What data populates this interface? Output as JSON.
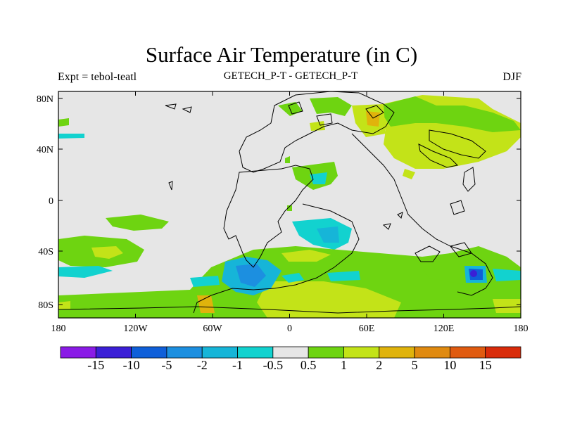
{
  "header": {
    "title": "Surface Air Temperature (in C)",
    "left_label": "Expt = tebol-teatl",
    "center_label": "GETECH_P-T - GETECH_P-T",
    "right_label": "DJF"
  },
  "map": {
    "lon_range": [
      -180,
      180
    ],
    "lat_range": [
      -90,
      90
    ],
    "x_ticks": [
      "180",
      "120W",
      "60W",
      "0",
      "60E",
      "120E",
      "180"
    ],
    "y_ticks": [
      "80N",
      "40N",
      "0",
      "40S",
      "80S"
    ],
    "background_color": "#e6e6e6"
  },
  "colorbar": {
    "labels": [
      "-15",
      "-10",
      "-5",
      "-2",
      "-1",
      "-0.5",
      "0.5",
      "1",
      "2",
      "5",
      "10",
      "15"
    ],
    "colors": [
      "#8a1be6",
      "#3b1fd6",
      "#0f5fd9",
      "#1c8fe0",
      "#16b5d8",
      "#12d2cf",
      "#e6e6e6",
      "#6ed411",
      "#c3e318",
      "#e0b30c",
      "#e08a10",
      "#e05b10",
      "#d92c0a"
    ]
  },
  "chart_data": {
    "type": "heatmap",
    "title": "Surface Air Temperature (in C)",
    "units": "C",
    "field": "temperature difference (tebol - teatl), DJF",
    "levels": [
      -15,
      -10,
      -5,
      -2,
      -1,
      -0.5,
      0.5,
      1,
      2,
      5,
      10,
      15
    ],
    "regions": [
      {
        "name": "northern-eurasia-warm",
        "level": "1 to 2",
        "lon": [
          40,
          180
        ],
        "lat": [
          40,
          80
        ]
      },
      {
        "name": "south-atlantic-cool",
        "level": "-2 to -5",
        "lon": [
          -50,
          -10
        ],
        "lat": [
          -75,
          -50
        ]
      },
      {
        "name": "southern-ocean-warm",
        "level": "1 to 5",
        "lon": [
          -10,
          80
        ],
        "lat": [
          -90,
          -55
        ]
      },
      {
        "name": "australia-cool-spot",
        "level": "-10 to -15",
        "lon": [
          140,
          150
        ],
        "lat": [
          -65,
          -55
        ]
      }
    ]
  }
}
